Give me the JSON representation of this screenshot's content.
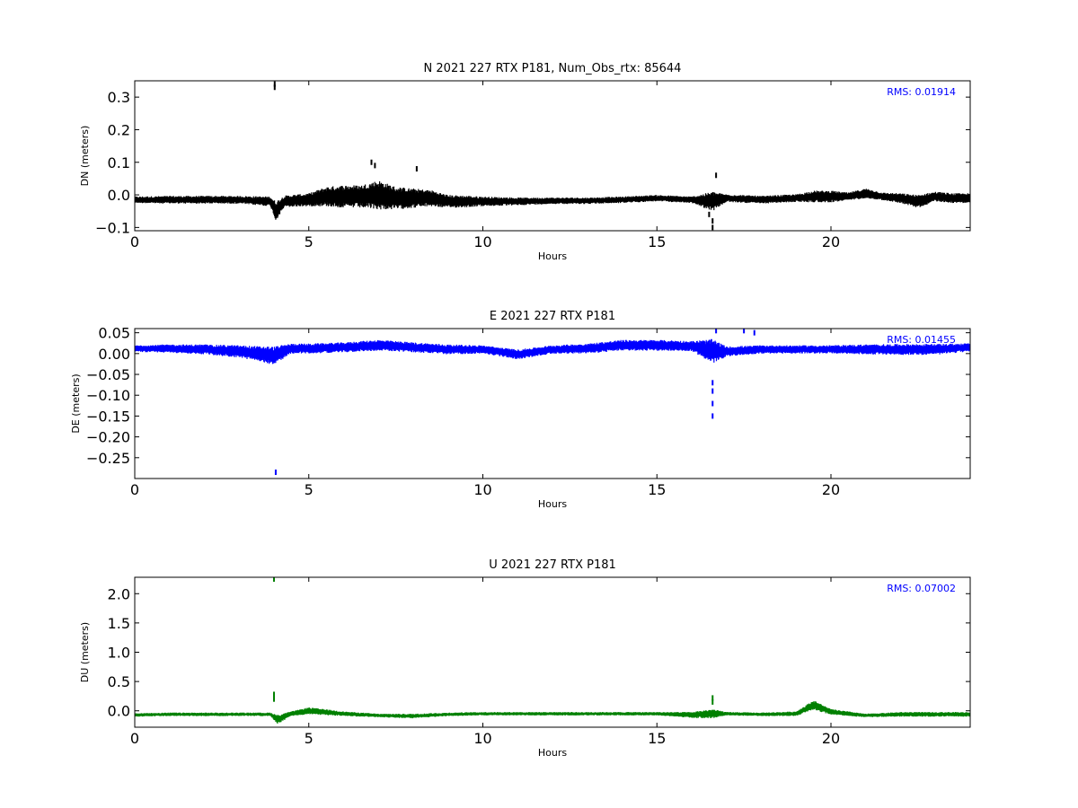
{
  "chart_data": [
    {
      "type": "scatter",
      "title": "N 2021 227 RTX  P181, Num_Obs_rtx: 85644",
      "xlabel": "Hours",
      "ylabel": "DN (meters)",
      "xlim": [
        0,
        24
      ],
      "ylim": [
        -0.11,
        0.35
      ],
      "xticks": [
        0,
        5,
        10,
        15,
        20
      ],
      "yticks": [
        -0.1,
        0.0,
        0.1,
        0.2,
        0.3
      ],
      "ytick_labels": [
        "−0.1",
        "0.0",
        "0.1",
        "0.2",
        "0.3"
      ],
      "grid": false,
      "annotation": "RMS:  0.01914",
      "annotation_color": "#0000ff",
      "series": [
        {
          "color": "#000000",
          "x": [
            0,
            1,
            2,
            3,
            3.9,
            4.05,
            4.3,
            5,
            5.5,
            6,
            6.5,
            7,
            7.5,
            8,
            8.5,
            9,
            9.5,
            10,
            11,
            12,
            13,
            14,
            15,
            16,
            16.6,
            17,
            18,
            19,
            19.5,
            20,
            20.5,
            21,
            21.5,
            22,
            22.5,
            23,
            23.5,
            24
          ],
          "y": [
            -0.015,
            -0.015,
            -0.015,
            -0.015,
            -0.02,
            -0.05,
            -0.02,
            -0.015,
            -0.005,
            -0.005,
            -0.005,
            0.0,
            -0.01,
            -0.01,
            -0.01,
            -0.02,
            -0.02,
            -0.02,
            -0.02,
            -0.018,
            -0.018,
            -0.015,
            -0.01,
            -0.015,
            -0.02,
            -0.01,
            -0.015,
            -0.01,
            -0.005,
            -0.005,
            -0.005,
            0.005,
            -0.005,
            -0.01,
            -0.02,
            -0.005,
            -0.01,
            -0.01
          ],
          "spread": [
            0.01,
            0.012,
            0.012,
            0.012,
            0.015,
            0.03,
            0.018,
            0.02,
            0.03,
            0.035,
            0.035,
            0.045,
            0.035,
            0.03,
            0.025,
            0.02,
            0.018,
            0.015,
            0.012,
            0.01,
            0.01,
            0.01,
            0.01,
            0.01,
            0.03,
            0.012,
            0.012,
            0.012,
            0.018,
            0.018,
            0.012,
            0.015,
            0.012,
            0.015,
            0.02,
            0.015,
            0.015,
            0.015
          ],
          "outliers": [
            [
              4.02,
              0.33
            ],
            [
              4.02,
              0.34
            ],
            [
              6.8,
              0.1
            ],
            [
              6.9,
              0.09
            ],
            [
              8.1,
              0.08
            ],
            [
              16.6,
              -0.1
            ],
            [
              16.6,
              -0.08
            ],
            [
              16.7,
              0.06
            ],
            [
              16.5,
              -0.06
            ]
          ]
        }
      ]
    },
    {
      "type": "scatter",
      "title": "E 2021 227 RTX  P181",
      "xlabel": "Hours",
      "ylabel": "DE (meters)",
      "xlim": [
        0,
        24
      ],
      "ylim": [
        -0.3,
        0.06
      ],
      "xticks": [
        0,
        5,
        10,
        15,
        20
      ],
      "yticks": [
        -0.25,
        -0.2,
        -0.15,
        -0.1,
        -0.05,
        0.0,
        0.05
      ],
      "ytick_labels": [
        "−0.25",
        "−0.20",
        "−0.15",
        "−0.10",
        "−0.05",
        "0.00",
        "0.05"
      ],
      "grid": false,
      "annotation": "RMS:  0.01455",
      "annotation_color": "#0000ff",
      "series": [
        {
          "color": "#0000ff",
          "x": [
            0,
            1,
            2,
            3,
            3.5,
            4.0,
            4.5,
            5,
            6,
            7,
            8,
            9,
            10,
            11,
            12,
            13,
            14,
            15,
            16,
            16.6,
            17,
            18,
            19,
            20,
            21,
            22,
            23,
            24
          ],
          "y": [
            0.012,
            0.012,
            0.01,
            0.005,
            0.0,
            -0.005,
            0.012,
            0.012,
            0.015,
            0.02,
            0.015,
            0.01,
            0.01,
            -0.002,
            0.01,
            0.012,
            0.02,
            0.02,
            0.018,
            0.005,
            0.005,
            0.01,
            0.01,
            0.01,
            0.01,
            0.01,
            0.01,
            0.015
          ],
          "spread": [
            0.008,
            0.01,
            0.012,
            0.015,
            0.018,
            0.022,
            0.012,
            0.012,
            0.012,
            0.013,
            0.012,
            0.012,
            0.01,
            0.012,
            0.01,
            0.012,
            0.013,
            0.013,
            0.012,
            0.03,
            0.012,
            0.01,
            0.01,
            0.01,
            0.012,
            0.013,
            0.013,
            0.01
          ],
          "outliers": [
            [
              4.05,
              -0.285
            ],
            [
              16.6,
              -0.15
            ],
            [
              16.6,
              -0.12
            ],
            [
              16.6,
              -0.09
            ],
            [
              16.6,
              -0.07
            ],
            [
              17.5,
              0.055
            ],
            [
              17.8,
              0.05
            ],
            [
              16.7,
              0.055
            ]
          ]
        }
      ]
    },
    {
      "type": "scatter",
      "title": "U 2021 227 RTX  P181",
      "xlabel": "Hours",
      "ylabel": "DU (meters)",
      "xlim": [
        0,
        24
      ],
      "ylim": [
        -0.28,
        2.28
      ],
      "xticks": [
        0,
        5,
        10,
        15,
        20
      ],
      "yticks": [
        0.0,
        0.5,
        1.0,
        1.5,
        2.0
      ],
      "ytick_labels": [
        "0.0",
        "0.5",
        "1.0",
        "1.5",
        "2.0"
      ],
      "grid": false,
      "annotation": "RMS:  0.07002",
      "annotation_color": "#0000ff",
      "series": [
        {
          "color": "#008000",
          "x": [
            0,
            1,
            2,
            3,
            3.9,
            4.1,
            4.5,
            5,
            6,
            7,
            8,
            9,
            10,
            11,
            12,
            13,
            14,
            15,
            16,
            16.6,
            17,
            18,
            19,
            19.5,
            20,
            21,
            22,
            23,
            24
          ],
          "y": [
            -0.07,
            -0.06,
            -0.06,
            -0.06,
            -0.06,
            -0.15,
            -0.05,
            0.0,
            -0.05,
            -0.08,
            -0.09,
            -0.06,
            -0.05,
            -0.05,
            -0.05,
            -0.05,
            -0.05,
            -0.05,
            -0.07,
            -0.05,
            -0.05,
            -0.06,
            -0.05,
            0.1,
            -0.02,
            -0.08,
            -0.06,
            -0.06,
            -0.06
          ],
          "spread": [
            0.03,
            0.03,
            0.03,
            0.03,
            0.03,
            0.08,
            0.04,
            0.06,
            0.04,
            0.03,
            0.04,
            0.03,
            0.03,
            0.03,
            0.03,
            0.03,
            0.03,
            0.03,
            0.05,
            0.08,
            0.03,
            0.03,
            0.04,
            0.08,
            0.05,
            0.03,
            0.04,
            0.04,
            0.04
          ],
          "outliers": [
            [
              4.0,
              2.25
            ],
            [
              4.0,
              0.28
            ],
            [
              4.0,
              0.2
            ],
            [
              16.6,
              0.22
            ],
            [
              16.6,
              0.15
            ]
          ]
        }
      ]
    }
  ]
}
